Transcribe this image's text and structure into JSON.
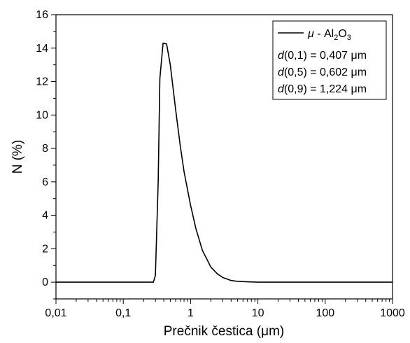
{
  "chart_data": {
    "type": "line",
    "title": "",
    "xlabel": "Prečnik čestica (μm)",
    "ylabel": "N (%)",
    "x_scale": "log",
    "xlim": [
      0.01,
      1000
    ],
    "ylim": [
      -1,
      16
    ],
    "x_ticks": [
      "0,01",
      "0,1",
      "1",
      "10",
      "100",
      "1000"
    ],
    "y_ticks": [
      "0",
      "2",
      "4",
      "6",
      "8",
      "10",
      "12",
      "14",
      "16"
    ],
    "grid": false,
    "legend_position": "top-right",
    "legend": {
      "series_label": {
        "mu": "μ",
        "dash": " - Al",
        "sub1": "2",
        "o": "O",
        "sub2": "3"
      },
      "stats": [
        {
          "d": "d",
          "arg": "(0,1) = 0,407 ",
          "unit": "μm"
        },
        {
          "d": "d",
          "arg": "(0,5) = 0,602 ",
          "unit": "μm"
        },
        {
          "d": "d",
          "arg": "(0,9) = 1,224 ",
          "unit": "μm"
        }
      ]
    },
    "series": [
      {
        "name": "μ - Al2O3",
        "color": "#000000",
        "points": [
          [
            0.01,
            0
          ],
          [
            0.1,
            0
          ],
          [
            0.28,
            0
          ],
          [
            0.3,
            0.4
          ],
          [
            0.33,
            6.0
          ],
          [
            0.35,
            12.2
          ],
          [
            0.39,
            14.3
          ],
          [
            0.44,
            14.25
          ],
          [
            0.5,
            13.0
          ],
          [
            0.6,
            10.3
          ],
          [
            0.7,
            8.2
          ],
          [
            0.8,
            6.6
          ],
          [
            1.0,
            4.6
          ],
          [
            1.2,
            3.2
          ],
          [
            1.5,
            1.9
          ],
          [
            2.0,
            0.9
          ],
          [
            2.5,
            0.5
          ],
          [
            3.0,
            0.28
          ],
          [
            4.0,
            0.1
          ],
          [
            5.0,
            0.05
          ],
          [
            7.0,
            0.02
          ],
          [
            10,
            0.0
          ],
          [
            100,
            0
          ],
          [
            1000,
            0
          ]
        ]
      }
    ]
  }
}
